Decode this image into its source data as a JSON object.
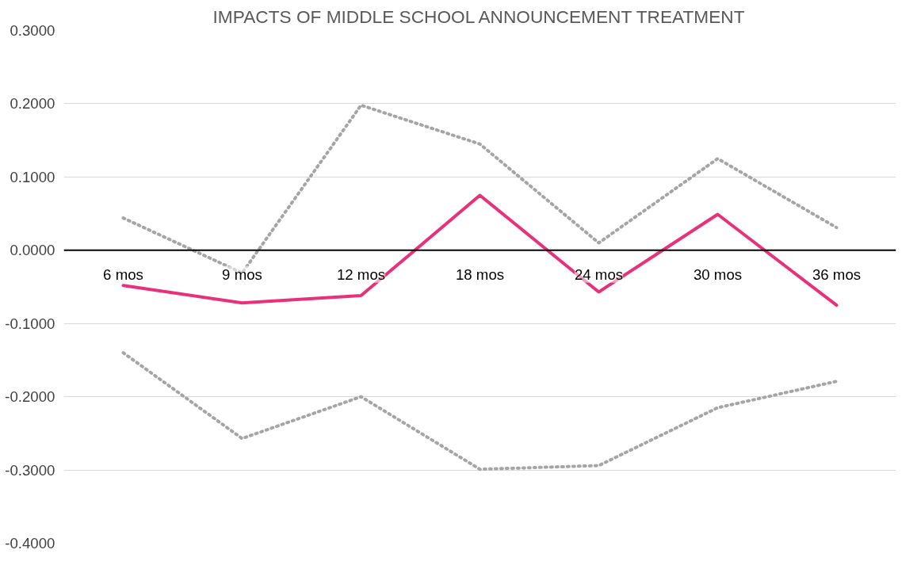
{
  "chart_data": {
    "type": "line",
    "title": "IMPACTS OF MIDDLE SCHOOL ANNOUNCEMENT TREATMENT",
    "categories": [
      "6 mos",
      "9 mos",
      "12 mos",
      "18 mos",
      "24 mos",
      "30 mos",
      "36 mos"
    ],
    "series": [
      {
        "color": "#a5a5a5",
        "line_style": "dotted",
        "values": [
          0.044,
          -0.031,
          0.198,
          0.145,
          0.01,
          0.125,
          0.031
        ]
      },
      {
        "color": "#a5a5a5",
        "line_style": "dotted",
        "values": [
          -0.14,
          -0.257,
          -0.2,
          -0.299,
          -0.294,
          -0.215,
          -0.179
        ]
      },
      {
        "color": "#e8317a",
        "line_style": "solid",
        "values": [
          -0.048,
          -0.072,
          -0.062,
          0.075,
          -0.057,
          0.049,
          -0.075
        ]
      }
    ],
    "ylim": [
      -0.4,
      0.3
    ],
    "yticks": [
      {
        "value": -0.4,
        "label": "-0.4000"
      },
      {
        "value": -0.3,
        "label": "-0.3000"
      },
      {
        "value": -0.2,
        "label": "-0.2000"
      },
      {
        "value": -0.1,
        "label": "-0.1000"
      },
      {
        "value": 0,
        "label": "0.0000"
      },
      {
        "value": 0.1,
        "label": "0.1000"
      },
      {
        "value": 0.2,
        "label": "0.2000"
      },
      {
        "value": 0.3,
        "label": "0.3000"
      }
    ],
    "grid": "y",
    "marker": "none"
  }
}
